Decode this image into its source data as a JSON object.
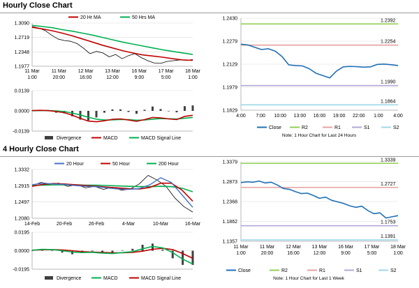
{
  "sections": [
    {
      "title": "Hourly Close Chart"
    },
    {
      "title": "4 Hourly Close Chart"
    }
  ],
  "colors": {
    "price": "#000000",
    "ma_red": "#c00000",
    "ma_green": "#00b050",
    "ma_blue": "#4472c4",
    "divergence": "#404040",
    "close_blue": "#1f6fb5",
    "r2": "#92d050",
    "r1": "#e6a0a0",
    "s1": "#b4a7d6",
    "s2": "#9dd8e8"
  },
  "chart_data": [
    {
      "type": "line",
      "legend": [
        "20 Hr MA",
        "50 Hrs MA"
      ],
      "y_ticks": [
        "1.3090",
        "1.2719",
        "1.2348",
        "1.1977"
      ],
      "ylim": [
        1.1977,
        1.309
      ],
      "x_ticks": [
        [
          "11 Mar",
          "1:00"
        ],
        [
          "11 Mar",
          "20:00"
        ],
        [
          "12 Mar",
          "16:00"
        ],
        [
          "13 Mar",
          "12:00"
        ],
        [
          "16 Mar",
          "9:00"
        ],
        [
          "17 Mar",
          "5:00"
        ],
        [
          "18 Mar",
          "1:00"
        ]
      ],
      "series": [
        {
          "name": "20 Hr MA",
          "values": [
            1.298,
            1.294,
            1.289,
            1.283,
            1.276,
            1.268,
            1.26,
            1.252,
            1.245,
            1.238,
            1.232,
            1.227,
            1.224,
            1.221,
            1.217,
            1.214,
            1.213
          ]
        },
        {
          "name": "50 Hrs MA",
          "values": [
            1.303,
            1.3,
            1.297,
            1.292,
            1.288,
            1.283,
            1.278,
            1.272,
            1.266,
            1.26,
            1.255,
            1.25,
            1.245,
            1.24,
            1.236,
            1.232,
            1.228
          ]
        }
      ],
      "price": [
        1.3,
        1.296,
        1.29,
        1.278,
        1.268,
        1.264,
        1.262,
        1.256,
        1.244,
        1.23,
        1.236,
        1.232,
        1.222,
        1.228,
        1.217,
        1.225,
        1.23,
        1.22,
        1.212,
        1.206,
        1.205,
        1.21,
        1.212,
        1.214,
        1.213,
        1.215
      ]
    },
    {
      "type": "line",
      "legend": [
        "Divergence",
        "MACD",
        "MACD Signal Line"
      ],
      "y_ticks": [
        "0.0139",
        "0.0000",
        "-0.0139"
      ],
      "ylim": [
        -0.0139,
        0.0139
      ],
      "series": [
        {
          "name": "MACD",
          "values": [
            0.0002,
            0.0004,
            0.0002,
            -0.0005,
            -0.0012,
            -0.003,
            -0.0052,
            -0.007,
            -0.0075,
            -0.0068,
            -0.0058,
            -0.0055,
            -0.0063,
            -0.0072,
            -0.006,
            -0.0045,
            -0.0048,
            -0.0055,
            -0.006,
            -0.0038,
            -0.003
          ]
        },
        {
          "name": "MACD Signal Line",
          "values": [
            0.0001,
            0.0002,
            0.0002,
            0.0,
            -0.0005,
            -0.0015,
            -0.0028,
            -0.0044,
            -0.0057,
            -0.0063,
            -0.0062,
            -0.0059,
            -0.006,
            -0.0064,
            -0.0063,
            -0.0057,
            -0.0053,
            -0.0054,
            -0.0056,
            -0.0051,
            -0.0045
          ]
        }
      ]
    },
    {
      "type": "line",
      "y_ticks": [
        "1.2430",
        "1.2279",
        "1.2129",
        "1.1979",
        "1.1829"
      ],
      "ylim": [
        1.1829,
        1.243
      ],
      "x_ticks": [
        "4:00",
        "7:00",
        "10:00",
        "13:00",
        "16:00",
        "19:00",
        "22:00",
        "1:00",
        "4:00"
      ],
      "legend": [
        "Close",
        "R2",
        "R1",
        "S1",
        "S2"
      ],
      "levels": [
        {
          "name": "R2",
          "value": 1.2392,
          "label": "1.2392"
        },
        {
          "name": "R1",
          "value": 1.2254,
          "label": "1.2254"
        },
        {
          "name": "S1",
          "value": 1.199,
          "label": "1.1990"
        },
        {
          "name": "S2",
          "value": 1.1864,
          "label": "1.1864"
        }
      ],
      "series": [
        {
          "name": "Close",
          "values": [
            1.226,
            1.2255,
            1.224,
            1.2225,
            1.223,
            1.2215,
            1.218,
            1.2125,
            1.212,
            1.2118,
            1.21,
            1.207,
            1.2055,
            1.204,
            1.2085,
            1.2112,
            1.2115,
            1.2113,
            1.211,
            1.2112,
            1.2128,
            1.213,
            1.2126,
            1.212
          ]
        }
      ],
      "note": "Note: 1 Hour Chart for Last 24 Hours"
    },
    {
      "type": "line",
      "legend": [
        "20 Hour",
        "50 Hour",
        "200 Hour"
      ],
      "y_ticks": [
        "1.3332",
        "1.2915",
        "1.2497",
        "1.2080"
      ],
      "ylim": [
        1.208,
        1.3332
      ],
      "x_ticks": [
        "14-Feb",
        "20-Feb",
        "26-Feb",
        "4-Mar",
        "10-Mar",
        "16-Mar"
      ],
      "series": [
        {
          "name": "20 Hour",
          "values": [
            1.294,
            1.298,
            1.296,
            1.295,
            1.292,
            1.29,
            1.289,
            1.286,
            1.283,
            1.282,
            1.284,
            1.294,
            1.312,
            1.3,
            1.268,
            1.236
          ]
        },
        {
          "name": "50 Hour",
          "values": [
            1.29,
            1.295,
            1.297,
            1.296,
            1.294,
            1.292,
            1.29,
            1.288,
            1.286,
            1.284,
            1.283,
            1.287,
            1.298,
            1.298,
            1.28,
            1.252
          ]
        },
        {
          "name": "200 Hour",
          "values": [
            1.292,
            1.293,
            1.294,
            1.294,
            1.294,
            1.293,
            1.293,
            1.292,
            1.291,
            1.29,
            1.289,
            1.289,
            1.29,
            1.289,
            1.285,
            1.276
          ]
        }
      ],
      "price": [
        1.292,
        1.3,
        1.296,
        1.298,
        1.29,
        1.294,
        1.286,
        1.29,
        1.282,
        1.288,
        1.28,
        1.283,
        1.296,
        1.318,
        1.306,
        1.29,
        1.26,
        1.238,
        1.224
      ]
    },
    {
      "type": "line",
      "legend": [
        "Divergence",
        "MACD",
        "MACD Signal Line"
      ],
      "y_ticks": [
        "0.0195",
        "0.0000",
        "-0.0195"
      ],
      "ylim": [
        -0.0195,
        0.0195
      ],
      "series": [
        {
          "name": "MACD",
          "values": [
            0.0005,
            0.0015,
            0.0012,
            0.0,
            -0.0015,
            -0.002,
            -0.0018,
            -0.0025,
            -0.003,
            -0.002,
            -0.001,
            0.002,
            0.0045,
            0.003,
            -0.002,
            -0.009,
            -0.014
          ]
        },
        {
          "name": "MACD Signal Line",
          "values": [
            0.0005,
            0.001,
            0.0012,
            0.0008,
            0.0,
            -0.001,
            -0.0015,
            -0.0018,
            -0.0022,
            -0.0022,
            -0.0018,
            -0.0005,
            0.0015,
            0.0025,
            0.0012,
            -0.003,
            -0.008
          ]
        }
      ]
    },
    {
      "type": "line",
      "y_ticks": [
        "1.3379",
        "1.2873",
        "1.2368",
        "1.1862",
        "1.1357"
      ],
      "ylim": [
        1.1357,
        1.3379
      ],
      "x_ticks": [
        [
          "11 Mar",
          "1:00"
        ],
        [
          "11 Mar",
          "20:00"
        ],
        [
          "12 Mar",
          "16:00"
        ],
        [
          "13 Mar",
          "12:00"
        ],
        [
          "16 Mar",
          "9:00"
        ],
        [
          "17 Mar",
          "5:00"
        ],
        [
          "18 Mar",
          "1:00"
        ]
      ],
      "legend": [
        "Close",
        "R2",
        "R1",
        "S1",
        "S2"
      ],
      "levels": [
        {
          "name": "R2",
          "value": 1.3339,
          "label": "1.3339"
        },
        {
          "name": "R1",
          "value": 1.2727,
          "label": "1.2727"
        },
        {
          "name": "S1",
          "value": 1.1753,
          "label": "1.1753"
        },
        {
          "name": "S2",
          "value": 1.1391,
          "label": "1.1391"
        }
      ],
      "series": [
        {
          "name": "Close",
          "values": [
            1.285,
            1.287,
            1.286,
            1.289,
            1.284,
            1.286,
            1.279,
            1.27,
            1.268,
            1.262,
            1.257,
            1.258,
            1.252,
            1.245,
            1.248,
            1.24,
            1.236,
            1.232,
            1.226,
            1.222,
            1.225,
            1.214,
            1.206,
            1.208,
            1.195,
            1.198,
            1.201
          ]
        }
      ],
      "note": "Note: 1 Hour Chart for Last 1 Week"
    }
  ]
}
